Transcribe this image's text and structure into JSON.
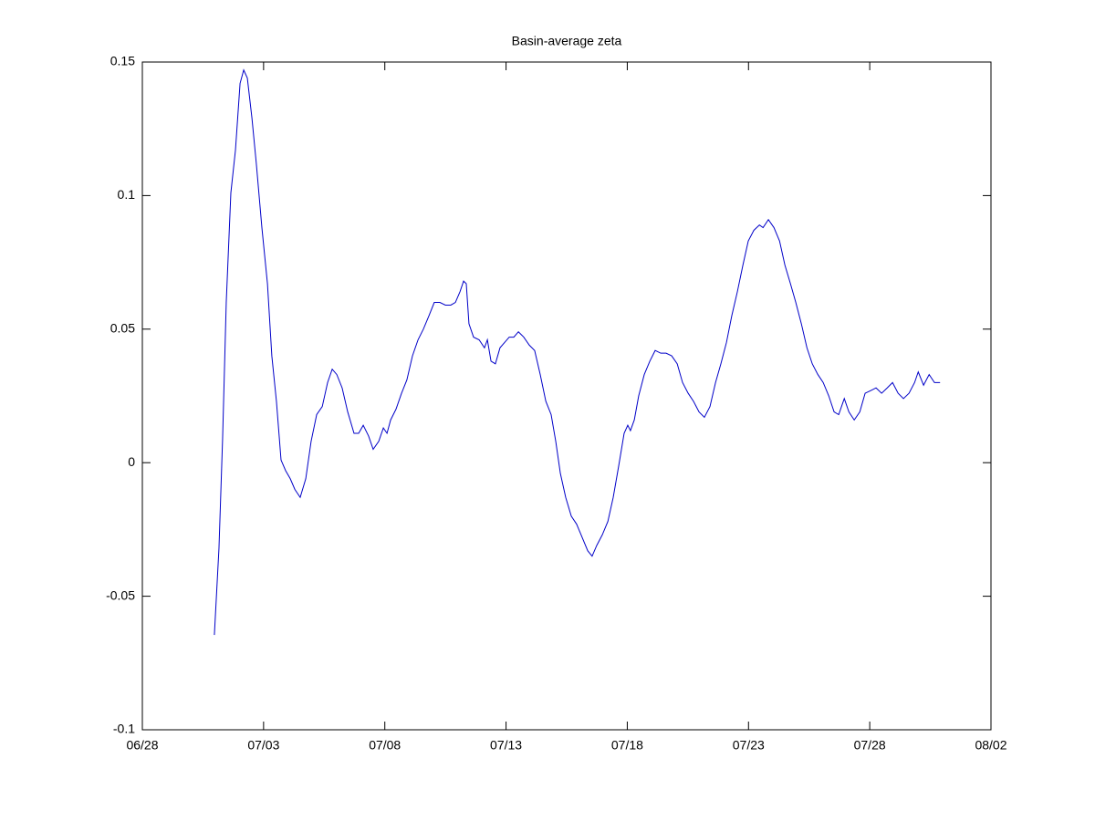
{
  "chart_data": {
    "type": "line",
    "title": "Basin-average zeta",
    "xlim": [
      0,
      35
    ],
    "xticks": [
      {
        "value": 0,
        "label": "06/28"
      },
      {
        "value": 5,
        "label": "07/03"
      },
      {
        "value": 10,
        "label": "07/08"
      },
      {
        "value": 15,
        "label": "07/13"
      },
      {
        "value": 20,
        "label": "07/18"
      },
      {
        "value": 25,
        "label": "07/23"
      },
      {
        "value": 30,
        "label": "07/28"
      },
      {
        "value": 35,
        "label": "08/02"
      }
    ],
    "ylim": [
      -0.1,
      0.15
    ],
    "yticks": [
      -0.1,
      -0.05,
      0,
      0.05,
      0.1,
      0.15
    ],
    "grid": false,
    "series": [
      {
        "color": "#0000c8",
        "x": [
          2.97,
          3.16,
          3.31,
          3.46,
          3.65,
          3.84,
          4.03,
          4.18,
          4.33,
          4.52,
          4.7,
          4.93,
          5.16,
          5.34,
          5.53,
          5.72,
          5.91,
          6.1,
          6.29,
          6.51,
          6.74,
          6.96,
          7.19,
          7.42,
          7.64,
          7.83,
          8.02,
          8.24,
          8.47,
          8.73,
          8.92,
          9.11,
          9.33,
          9.52,
          9.75,
          9.94,
          10.09,
          10.24,
          10.46,
          10.69,
          10.91,
          11.14,
          11.37,
          11.59,
          11.82,
          12.04,
          12.27,
          12.5,
          12.72,
          12.91,
          13.1,
          13.25,
          13.36,
          13.47,
          13.66,
          13.89,
          14.11,
          14.23,
          14.38,
          14.56,
          14.75,
          14.94,
          15.13,
          15.32,
          15.51,
          15.73,
          15.96,
          16.18,
          16.41,
          16.64,
          16.86,
          17.05,
          17.24,
          17.46,
          17.69,
          17.91,
          18.14,
          18.37,
          18.55,
          18.74,
          18.97,
          19.2,
          19.42,
          19.65,
          19.87,
          20.02,
          20.13,
          20.29,
          20.47,
          20.7,
          20.93,
          21.15,
          21.38,
          21.6,
          21.83,
          22.06,
          22.28,
          22.51,
          22.73,
          22.96,
          23.18,
          23.41,
          23.64,
          23.86,
          24.09,
          24.31,
          24.54,
          24.77,
          24.99,
          25.22,
          25.45,
          25.6,
          25.82,
          26.05,
          26.28,
          26.5,
          26.73,
          26.95,
          27.18,
          27.41,
          27.63,
          27.86,
          28.08,
          28.31,
          28.53,
          28.72,
          28.95,
          29.14,
          29.36,
          29.59,
          29.81,
          30.04,
          30.26,
          30.49,
          30.72,
          30.94,
          31.17,
          31.39,
          31.62,
          31.85,
          32.0,
          32.22,
          32.45,
          32.67,
          32.9
        ],
        "values": [
          -0.0645,
          -0.032,
          0.009,
          0.06,
          0.101,
          0.117,
          0.142,
          0.147,
          0.144,
          0.129,
          0.112,
          0.088,
          0.067,
          0.04,
          0.023,
          0.001,
          -0.003,
          -0.006,
          -0.01,
          -0.013,
          -0.006,
          0.008,
          0.018,
          0.021,
          0.03,
          0.035,
          0.033,
          0.028,
          0.019,
          0.011,
          0.011,
          0.014,
          0.01,
          0.005,
          0.008,
          0.013,
          0.011,
          0.016,
          0.02,
          0.026,
          0.031,
          0.04,
          0.046,
          0.05,
          0.055,
          0.06,
          0.06,
          0.059,
          0.059,
          0.06,
          0.064,
          0.068,
          0.067,
          0.052,
          0.047,
          0.046,
          0.043,
          0.046,
          0.038,
          0.037,
          0.043,
          0.045,
          0.047,
          0.047,
          0.049,
          0.047,
          0.044,
          0.042,
          0.033,
          0.023,
          0.018,
          0.008,
          -0.004,
          -0.013,
          -0.02,
          -0.023,
          -0.028,
          -0.033,
          -0.035,
          -0.031,
          -0.027,
          -0.022,
          -0.013,
          -0.001,
          0.011,
          0.014,
          0.012,
          0.016,
          0.025,
          0.033,
          0.038,
          0.042,
          0.041,
          0.041,
          0.04,
          0.037,
          0.03,
          0.026,
          0.023,
          0.019,
          0.017,
          0.021,
          0.03,
          0.037,
          0.045,
          0.055,
          0.064,
          0.074,
          0.083,
          0.087,
          0.089,
          0.088,
          0.091,
          0.088,
          0.083,
          0.074,
          0.067,
          0.06,
          0.052,
          0.043,
          0.037,
          0.033,
          0.03,
          0.025,
          0.019,
          0.018,
          0.024,
          0.019,
          0.016,
          0.019,
          0.026,
          0.027,
          0.028,
          0.026,
          0.028,
          0.03,
          0.026,
          0.024,
          0.026,
          0.03,
          0.034,
          0.029,
          0.033,
          0.03,
          0.03
        ]
      }
    ]
  }
}
